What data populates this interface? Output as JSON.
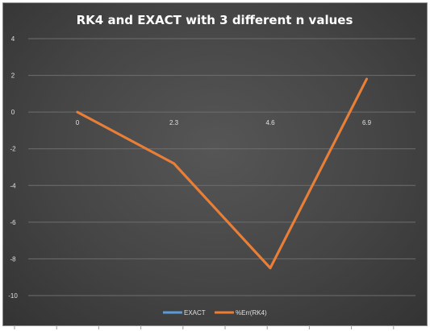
{
  "chart_data": {
    "type": "line",
    "title": "RK4 and EXACT with 3 different n values",
    "xlabel": "",
    "ylabel": "",
    "categories": [
      "0",
      "2.3",
      "4.6",
      "6.9"
    ],
    "ylim": [
      -10,
      4
    ],
    "yticks": [
      4,
      2,
      0,
      -2,
      -4,
      -6,
      -8,
      -10
    ],
    "grid": true,
    "legend_position": "bottom",
    "series": [
      {
        "name": "EXACT",
        "color": "#5b9bd5",
        "values": [
          0,
          -2.8,
          -8.5,
          1.8
        ]
      },
      {
        "name": "%Err(RK4)",
        "color": "#ed7d31",
        "values": [
          0,
          -2.8,
          -8.5,
          1.8
        ]
      }
    ]
  }
}
